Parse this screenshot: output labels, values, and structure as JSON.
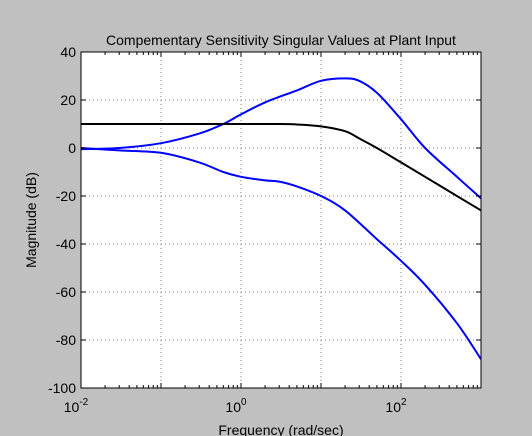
{
  "chart_data": {
    "type": "line",
    "title": "Compementary Sensitivity Singular Values at Plant Input",
    "xlabel": "Frequency (rad/sec)",
    "ylabel": "Magnitude (dB)",
    "xscale": "log",
    "xlim": [
      0.01,
      1000
    ],
    "ylim": [
      -100,
      40
    ],
    "x_ticks": [
      {
        "value": 0.01,
        "base": "10",
        "exp": "-2"
      },
      {
        "value": 1,
        "base": "10",
        "exp": "0"
      },
      {
        "value": 100,
        "base": "10",
        "exp": "2"
      }
    ],
    "y_ticks": [
      40,
      20,
      0,
      -20,
      -40,
      -60,
      -80,
      -100
    ],
    "y_tick_labels": [
      "40",
      "20",
      "0",
      "-20",
      "-40",
      "-60",
      "-80",
      "-100"
    ],
    "grid": true,
    "colors": {
      "figure_bg": "#c0c0c0",
      "axes_bg": "#ffffff",
      "grid": "#808080",
      "blue": "#0000ff",
      "black": "#000000"
    },
    "series": [
      {
        "color": "#0000ff",
        "x": [
          0.01,
          0.03,
          0.1,
          0.3,
          0.6,
          1,
          2,
          5,
          10,
          20,
          30,
          50,
          100,
          200,
          500,
          1000
        ],
        "y": [
          -0.5,
          0,
          2,
          6,
          10,
          14,
          19,
          24,
          28,
          29,
          28,
          23,
          12,
          0,
          -12,
          -21
        ]
      },
      {
        "color": "#000000",
        "x": [
          0.01,
          0.1,
          1,
          3,
          5,
          10,
          20,
          30,
          50,
          100,
          200,
          500,
          1000
        ],
        "y": [
          10,
          10,
          10,
          10,
          9.8,
          9,
          7,
          4,
          0,
          -6,
          -12,
          -20,
          -26
        ]
      },
      {
        "color": "#0000ff",
        "x": [
          0.01,
          0.03,
          0.1,
          0.3,
          0.6,
          1,
          2,
          3,
          5,
          10,
          20,
          50,
          100,
          200,
          500,
          1000
        ],
        "y": [
          0,
          -1,
          -2,
          -6,
          -10,
          -12,
          -13.5,
          -14,
          -16,
          -20,
          -26,
          -38,
          -47,
          -57,
          -73,
          -88
        ]
      }
    ]
  }
}
